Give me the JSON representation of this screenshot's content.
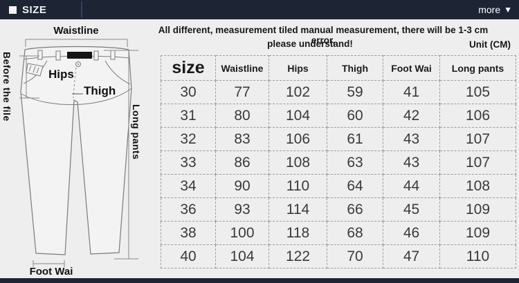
{
  "header": {
    "title": "SIZE",
    "more_label": "more",
    "more_arrow": "▼"
  },
  "notice": {
    "line1": "All different, measurement tiled manual measurement, there will be 1-3 cm error,",
    "line2": "please understand!",
    "unit": "Unit (CM)"
  },
  "diagram": {
    "labels": {
      "waistline": "Waistline",
      "before_the_file": "Before the file",
      "hips": "Hips",
      "thigh": "Thigh",
      "long_pants": "Long pants",
      "foot_wai": "Foot Wai"
    }
  },
  "table": {
    "columns": [
      "size",
      "Waistline",
      "Hips",
      "Thigh",
      "Foot Wai",
      "Long pants"
    ],
    "rows": [
      [
        "30",
        "77",
        "102",
        "59",
        "41",
        "105"
      ],
      [
        "31",
        "80",
        "104",
        "60",
        "42",
        "106"
      ],
      [
        "32",
        "83",
        "106",
        "61",
        "43",
        "107"
      ],
      [
        "33",
        "86",
        "108",
        "63",
        "43",
        "107"
      ],
      [
        "34",
        "90",
        "110",
        "64",
        "44",
        "108"
      ],
      [
        "36",
        "93",
        "114",
        "66",
        "45",
        "109"
      ],
      [
        "38",
        "100",
        "118",
        "68",
        "46",
        "109"
      ],
      [
        "40",
        "104",
        "122",
        "70",
        "47",
        "110"
      ]
    ]
  },
  "colors": {
    "bar_bg": "#1d2534",
    "page_bg": "#eeeeee",
    "dash_border": "#9b9b9b",
    "text": "#1a1a1a"
  }
}
